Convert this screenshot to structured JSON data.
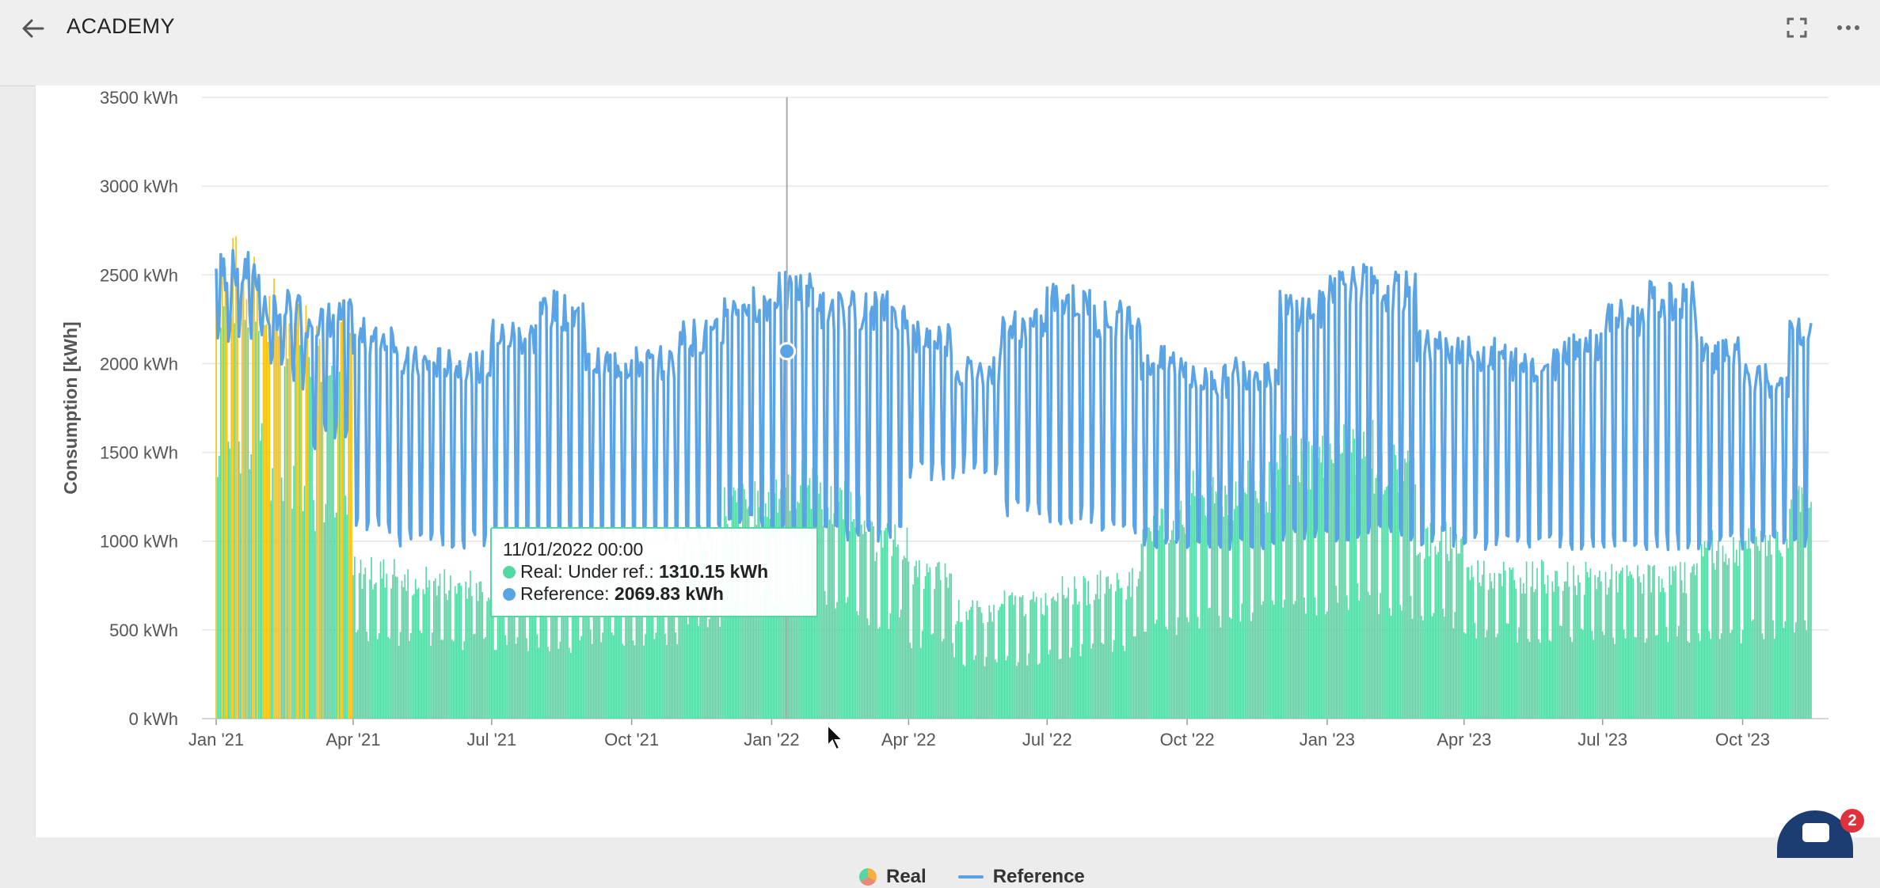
{
  "header": {
    "title": "ACADEMY",
    "back_icon": "arrow-left-icon",
    "fullscreen_icon": "fullscreen-icon",
    "more_icon": "more-horizontal-icon"
  },
  "colors": {
    "real": "#54d8a3",
    "real_over": "#f4c012",
    "reference": "#5aa4e6",
    "grid": "#e6e6e6",
    "tooltip_border": "#54d8a3",
    "badge": "#e0323c",
    "chat": "#1d3c72"
  },
  "tooltip": {
    "date": "11/01/2022 00:00",
    "real_label": "Real: Under ref.: ",
    "real_value": "1310.15 kWh",
    "reference_label": "Reference: ",
    "reference_value": "2069.83 kWh"
  },
  "legend": {
    "real": "Real",
    "reference": "Reference"
  },
  "chat": {
    "badge_count": "2"
  },
  "chart_data": {
    "type": "bar",
    "ylabel": "Consumption [kWh]",
    "ylim": [
      0,
      3500
    ],
    "y_ticks": [
      "0 kWh",
      "500 kWh",
      "1000 kWh",
      "1500 kWh",
      "2000 kWh",
      "2500 kWh",
      "3000 kWh",
      "3500 kWh"
    ],
    "x_ticks": [
      "Jan '21",
      "Apr '21",
      "Jul '21",
      "Oct '21",
      "Jan '22",
      "Apr '22",
      "Jul '22",
      "Oct '22",
      "Jan '23",
      "Apr '23",
      "Jul '23",
      "Oct '23"
    ],
    "x_range": [
      "2021-01-01",
      "2023-11-15"
    ],
    "grid": true,
    "legend_position": "bottom",
    "series": [
      {
        "name": "Real",
        "kind": "daily bars",
        "monthly_level": [
          {
            "month": "2021-01",
            "workday": 2450,
            "weekend": 1500
          },
          {
            "month": "2021-02",
            "workday": 2250,
            "weekend": 1300
          },
          {
            "month": "2021-03",
            "workday": 2150,
            "weekend": 1150
          },
          {
            "month": "2021-04",
            "workday": 820,
            "weekend": 470
          },
          {
            "month": "2021-05",
            "workday": 770,
            "weekend": 450
          },
          {
            "month": "2021-06",
            "workday": 750,
            "weekend": 440
          },
          {
            "month": "2021-07",
            "workday": 730,
            "weekend": 430
          },
          {
            "month": "2021-08",
            "workday": 720,
            "weekend": 420
          },
          {
            "month": "2021-09",
            "workday": 780,
            "weekend": 450
          },
          {
            "month": "2021-10",
            "workday": 800,
            "weekend": 460
          },
          {
            "month": "2021-11",
            "workday": 980,
            "weekend": 560
          },
          {
            "month": "2021-12",
            "workday": 1200,
            "weekend": 640
          },
          {
            "month": "2022-01",
            "workday": 1310,
            "weekend": 700
          },
          {
            "month": "2022-02",
            "workday": 1200,
            "weekend": 660
          },
          {
            "month": "2022-03",
            "workday": 1000,
            "weekend": 560
          },
          {
            "month": "2022-04",
            "workday": 800,
            "weekend": 450
          },
          {
            "month": "2022-05",
            "workday": 600,
            "weekend": 320
          },
          {
            "month": "2022-06",
            "workday": 650,
            "weekend": 330
          },
          {
            "month": "2022-07",
            "workday": 720,
            "weekend": 380
          },
          {
            "month": "2022-08",
            "workday": 760,
            "weekend": 420
          },
          {
            "month": "2022-09",
            "workday": 1100,
            "weekend": 520
          },
          {
            "month": "2022-10",
            "workday": 1250,
            "weekend": 560
          },
          {
            "month": "2022-11",
            "workday": 1300,
            "weekend": 600
          },
          {
            "month": "2022-12",
            "workday": 1450,
            "weekend": 640
          },
          {
            "month": "2023-01",
            "workday": 1550,
            "weekend": 680
          },
          {
            "month": "2023-02",
            "workday": 1400,
            "weekend": 640
          },
          {
            "month": "2023-03",
            "workday": 1000,
            "weekend": 560
          },
          {
            "month": "2023-04",
            "workday": 820,
            "weekend": 500
          },
          {
            "month": "2023-05",
            "workday": 800,
            "weekend": 480
          },
          {
            "month": "2023-06",
            "workday": 790,
            "weekend": 470
          },
          {
            "month": "2023-07",
            "workday": 780,
            "weekend": 470
          },
          {
            "month": "2023-08",
            "workday": 800,
            "weekend": 470
          },
          {
            "month": "2023-09",
            "workday": 950,
            "weekend": 480
          },
          {
            "month": "2023-10",
            "workday": 1000,
            "weekend": 500
          },
          {
            "month": "2023-11",
            "workday": 1300,
            "weekend": 520
          }
        ]
      },
      {
        "name": "Reference",
        "kind": "daily line",
        "monthly_level": [
          {
            "month": "2021-01",
            "workday": 2520,
            "weekend": 2200
          },
          {
            "month": "2021-02",
            "workday": 2300,
            "weekend": 1950
          },
          {
            "month": "2021-03",
            "workday": 2250,
            "weekend": 1600
          },
          {
            "month": "2021-04",
            "workday": 2150,
            "weekend": 1100
          },
          {
            "month": "2021-05",
            "workday": 2000,
            "weekend": 1020
          },
          {
            "month": "2021-06",
            "workday": 1980,
            "weekend": 1010
          },
          {
            "month": "2021-07",
            "workday": 2150,
            "weekend": 1050
          },
          {
            "month": "2021-08",
            "workday": 2300,
            "weekend": 1050
          },
          {
            "month": "2021-09",
            "workday": 2000,
            "weekend": 1030
          },
          {
            "month": "2021-10",
            "workday": 2000,
            "weekend": 1030
          },
          {
            "month": "2021-11",
            "workday": 2150,
            "weekend": 1050
          },
          {
            "month": "2021-12",
            "workday": 2350,
            "weekend": 1100
          },
          {
            "month": "2022-01",
            "workday": 2400,
            "weekend": 1050
          },
          {
            "month": "2022-02",
            "workday": 2300,
            "weekend": 1050
          },
          {
            "month": "2022-03",
            "workday": 2300,
            "weekend": 1050
          },
          {
            "month": "2022-04",
            "workday": 2150,
            "weekend": 1400
          },
          {
            "month": "2022-05",
            "workday": 1950,
            "weekend": 1450
          },
          {
            "month": "2022-06",
            "workday": 2200,
            "weekend": 1200
          },
          {
            "month": "2022-07",
            "workday": 2350,
            "weekend": 1150
          },
          {
            "month": "2022-08",
            "workday": 2250,
            "weekend": 1100
          },
          {
            "month": "2022-09",
            "workday": 2000,
            "weekend": 1000
          },
          {
            "month": "2022-10",
            "workday": 1900,
            "weekend": 1000
          },
          {
            "month": "2022-11",
            "workday": 1950,
            "weekend": 1000
          },
          {
            "month": "2022-12",
            "workday": 2300,
            "weekend": 1050
          },
          {
            "month": "2023-01",
            "workday": 2450,
            "weekend": 1050
          },
          {
            "month": "2023-02",
            "workday": 2400,
            "weekend": 1050
          },
          {
            "month": "2023-03",
            "workday": 2100,
            "weekend": 1020
          },
          {
            "month": "2023-04",
            "workday": 2050,
            "weekend": 1000
          },
          {
            "month": "2023-05",
            "workday": 2000,
            "weekend": 1000
          },
          {
            "month": "2023-06",
            "workday": 2100,
            "weekend": 1000
          },
          {
            "month": "2023-07",
            "workday": 2250,
            "weekend": 1000
          },
          {
            "month": "2023-08",
            "workday": 2350,
            "weekend": 1000
          },
          {
            "month": "2023-09",
            "workday": 2050,
            "weekend": 1000
          },
          {
            "month": "2023-10",
            "workday": 1900,
            "weekend": 1000
          },
          {
            "month": "2023-11",
            "workday": 2150,
            "weekend": 1000
          }
        ]
      }
    ],
    "highlight_point": {
      "date": "2022-01-11",
      "real": 1310.15,
      "reference": 2069.83
    }
  }
}
